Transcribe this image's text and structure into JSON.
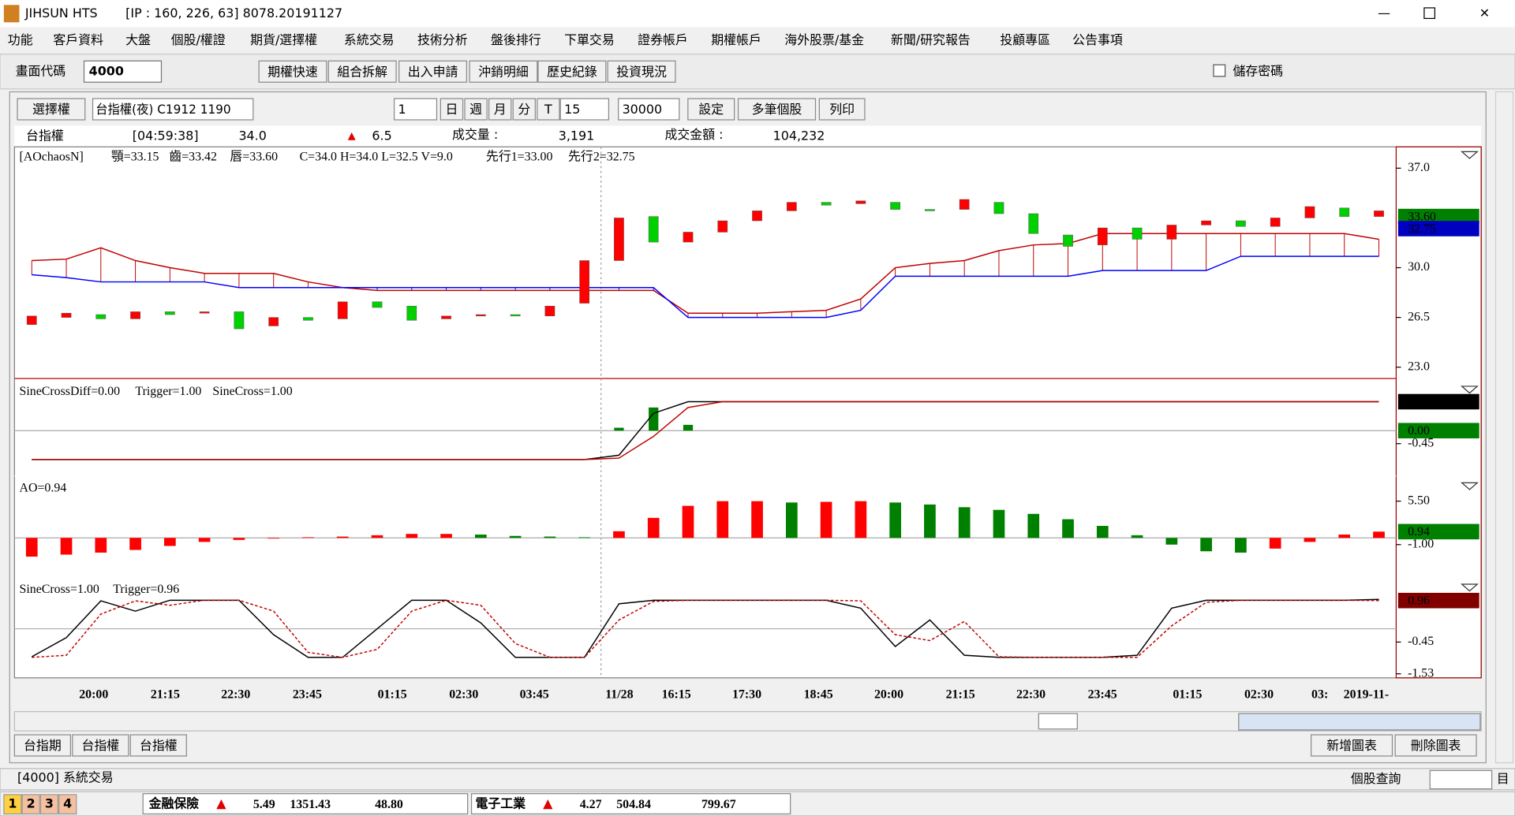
{
  "window": {
    "app": "JIHSUN HTS",
    "info": "[IP : 160, 226, 63] 8078.20191127"
  },
  "menu": [
    "功能",
    "客戶資料",
    "大盤",
    "個股/權證",
    "期貨/選擇權",
    "系統交易",
    "技術分析",
    "盤後排行",
    "下單交易",
    "證券帳戶",
    "期權帳戶",
    "海外股票/基金",
    "新聞/研究報告",
    "投顧專區",
    "公告事項"
  ],
  "toolbar": {
    "code_label": "畫面代碼",
    "code": "4000",
    "buttons": [
      "期權快速",
      "組合拆解",
      "出入申請",
      "沖銷明細",
      "歷史紀錄",
      "投資現況"
    ],
    "save_password": "儲存密碼"
  },
  "chart_toolbar": {
    "selector": "選擇權",
    "symbol": "台指權(夜) C1912 1190",
    "page": "1",
    "periods": [
      "日",
      "週",
      "月",
      "分",
      "T"
    ],
    "interval": "15",
    "count": "30000",
    "buttons": [
      "設定",
      "多筆個股",
      "列印"
    ]
  },
  "quote": {
    "name": "台指權",
    "time": "[04:59:38]",
    "price": "34.0",
    "change": "6.5",
    "volume_label": "成交量 :",
    "volume": "3,191",
    "amount_label": "成交金額 :",
    "amount": "104,232"
  },
  "panels": [
    {
      "type": "candlestick",
      "legend": [
        {
          "text": "[AOchaosN]",
          "color": "#000000"
        },
        {
          "text": "顎=33.15",
          "color": "#0000c0"
        },
        {
          "text": "齒=33.42",
          "color": "#c00000"
        },
        {
          "text": "唇=33.60",
          "color": "#008000"
        },
        {
          "text": "C=34.0 H=34.0 L=32.5 V=9.0",
          "color": "#008000"
        },
        {
          "text": "先行1=33.00",
          "color": "#c00000"
        },
        {
          "text": "先行2=32.75",
          "color": "#0000c0"
        }
      ],
      "ylim": [
        22.2,
        38.5
      ],
      "yticks": [
        {
          "value": 37,
          "label": "37.0"
        },
        {
          "value": 30,
          "label": "30.0"
        },
        26.5,
        {
          "value": 23,
          "label": "23.0"
        }
      ],
      "open": [
        26.0,
        26.5,
        26.7,
        26.4,
        26.9,
        26.8,
        26.9,
        25.9,
        26.5,
        26.4,
        27.6,
        27.3,
        26.4,
        26.6,
        26.7,
        26.6,
        27.5,
        30.5,
        33.6,
        31.8,
        32.5,
        33.3,
        34.0,
        34.6,
        34.5,
        34.6,
        34.1,
        34.1,
        34.6,
        33.8,
        32.3,
        31.6,
        32.8,
        32.0,
        33.0,
        33.3,
        32.9,
        33.5,
        34.2,
        33.6
      ],
      "close": [
        26.6,
        26.8,
        26.4,
        26.9,
        26.7,
        26.9,
        25.7,
        26.5,
        26.3,
        27.6,
        27.2,
        26.3,
        26.6,
        26.7,
        26.6,
        27.3,
        30.5,
        33.5,
        31.8,
        32.5,
        33.3,
        34.0,
        34.6,
        34.4,
        34.7,
        34.1,
        34.0,
        34.8,
        33.8,
        32.4,
        31.5,
        32.8,
        32.0,
        33.0,
        33.3,
        32.9,
        33.5,
        34.3,
        33.6,
        34.0
      ],
      "up_color": "#ff0000",
      "down_color": "#00d000",
      "span1": {
        "color": "#c00000",
        "values": [
          30.5,
          30.6,
          31.4,
          30.5,
          30.0,
          29.6,
          29.6,
          29.6,
          29.0,
          28.6,
          28.4,
          28.4,
          28.4,
          28.4,
          28.4,
          28.4,
          28.4,
          28.4,
          28.4,
          26.8,
          26.8,
          26.8,
          26.9,
          27.0,
          27.8,
          30.0,
          30.3,
          30.5,
          31.2,
          31.6,
          31.7,
          32.4,
          32.4,
          32.4,
          32.4,
          32.4,
          32.4,
          32.4,
          32.4,
          32.0
        ]
      },
      "span2": {
        "color": "#0000ff",
        "values": [
          29.5,
          29.3,
          29.0,
          29.0,
          29.0,
          29.0,
          28.6,
          28.6,
          28.6,
          28.6,
          28.6,
          28.6,
          28.6,
          28.6,
          28.6,
          28.6,
          28.6,
          28.6,
          28.6,
          26.5,
          26.5,
          26.5,
          26.5,
          26.5,
          27.0,
          29.4,
          29.4,
          29.4,
          29.4,
          29.4,
          29.4,
          29.8,
          29.8,
          29.8,
          29.8,
          30.8,
          30.8,
          30.8,
          30.8,
          30.8
        ]
      },
      "tags": [
        {
          "value": 33.6,
          "label": "33.60",
          "color": "#008000"
        },
        {
          "value": 32.75,
          "label": "32.75",
          "color": "#0000c0"
        }
      ]
    },
    {
      "type": "line",
      "legend": [
        {
          "text": "SineCrossDiff=0.00",
          "color": "#008000"
        },
        {
          "text": "Trigger=1.00",
          "color": "#c00000"
        },
        {
          "text": "SineCross=1.00",
          "color": "#000000"
        }
      ],
      "ylim": [
        -1.47,
        1.7
      ],
      "yticks": [
        {
          "value": -0.45,
          "label": "-0.45"
        }
      ],
      "series": [
        {
          "color": "#000000",
          "dash": false,
          "values": [
            -1,
            -1,
            -1,
            -1,
            -1,
            -1,
            -1,
            -1,
            -1,
            -1,
            -1,
            -1,
            -1,
            -1,
            -1,
            -1,
            -1,
            -0.85,
            0.6,
            1,
            1,
            1,
            1,
            1,
            1,
            1,
            1,
            1,
            1,
            1,
            1,
            1,
            1,
            1,
            1,
            1,
            1,
            1,
            1,
            1
          ]
        },
        {
          "color": "#c00000",
          "dash": false,
          "values": [
            -1,
            -1,
            -1,
            -1,
            -1,
            -1,
            -1,
            -1,
            -1,
            -1,
            -1,
            -1,
            -1,
            -1,
            -1,
            -1,
            -1,
            -0.95,
            -0.2,
            0.8,
            1,
            1,
            1,
            1,
            1,
            1,
            1,
            1,
            1,
            1,
            1,
            1,
            1,
            1,
            1,
            1,
            1,
            1,
            1,
            1
          ]
        }
      ],
      "bars": {
        "color": "#008000",
        "values": [
          0,
          0,
          0,
          0,
          0,
          0,
          0,
          0,
          0,
          0,
          0,
          0,
          0,
          0,
          0,
          0,
          0,
          0.1,
          0.8,
          0.2,
          0,
          0,
          0,
          0,
          0,
          0,
          0,
          0,
          0,
          0,
          0,
          0,
          0,
          0,
          0,
          0,
          0,
          0,
          0,
          0
        ]
      },
      "tags": [
        {
          "value": 1,
          "label": "1.00",
          "color": "#000000"
        },
        {
          "value": 0,
          "label": "0.00",
          "color": "#008000"
        }
      ]
    },
    {
      "type": "bar",
      "legend": [
        {
          "text": "AO=0.94",
          "color": "#008000"
        }
      ],
      "ylim": [
        -5.48,
        8.97
      ],
      "yticks": [
        {
          "value": 5.5,
          "label": "5.50"
        },
        {
          "value": -1,
          "label": "-1.00"
        }
      ],
      "values": [
        -2.8,
        -2.5,
        -2.2,
        -1.8,
        -1.2,
        -0.6,
        -0.3,
        -0.1,
        0.1,
        0.2,
        0.4,
        0.6,
        0.6,
        0.5,
        0.3,
        0.2,
        0.1,
        1.0,
        3.0,
        4.8,
        5.5,
        5.5,
        5.3,
        5.4,
        5.5,
        5.3,
        5.0,
        4.6,
        4.2,
        3.6,
        2.8,
        1.8,
        0.4,
        -1.0,
        -2.0,
        -2.2,
        -1.6,
        -0.6,
        0.5,
        0.94
      ],
      "up_color": "#ff0000",
      "down_color": "#008000",
      "tags": [
        {
          "value": 0.94,
          "label": "0.94",
          "color": "#008000"
        }
      ]
    },
    {
      "type": "line",
      "legend": [
        {
          "text": "SineCross=1.00",
          "color": "#000000"
        },
        {
          "text": "Trigger=0.96",
          "color": "#c00000"
        }
      ],
      "ylim": [
        -1.6,
        1.68
      ],
      "yticks": [
        {
          "value": -0.45,
          "label": "-0.45"
        },
        {
          "value": -1.53,
          "label": "-1.53"
        }
      ],
      "series": [
        {
          "color": "#000000",
          "dash": false,
          "values": [
            -0.95,
            -0.3,
            0.95,
            0.6,
            0.97,
            0.97,
            0.97,
            -0.2,
            -0.97,
            -0.97,
            0.0,
            0.97,
            0.97,
            0.2,
            -0.97,
            -0.97,
            -0.97,
            0.85,
            0.97,
            0.97,
            0.97,
            0.97,
            0.97,
            0.97,
            0.7,
            -0.6,
            0.3,
            -0.9,
            -0.97,
            -0.97,
            -0.97,
            -0.97,
            -0.9,
            0.7,
            0.97,
            0.97,
            0.97,
            0.97,
            0.97,
            1.0
          ]
        },
        {
          "color": "#c00000",
          "dash": true,
          "values": [
            -0.97,
            -0.9,
            0.5,
            0.95,
            0.8,
            0.97,
            0.97,
            0.6,
            -0.8,
            -0.97,
            -0.7,
            0.6,
            0.97,
            0.8,
            -0.5,
            -0.97,
            -0.97,
            0.3,
            0.93,
            0.97,
            0.97,
            0.97,
            0.97,
            0.97,
            0.95,
            -0.2,
            -0.4,
            0.25,
            -0.95,
            -0.97,
            -0.97,
            -0.97,
            -0.97,
            0.1,
            0.9,
            0.97,
            0.97,
            0.97,
            0.97,
            0.96
          ]
        }
      ],
      "tags": [
        {
          "value": 0.96,
          "label": "0.96",
          "color": "#800000"
        }
      ]
    }
  ],
  "x_labels": [
    "20:00",
    "21:15",
    "22:30",
    "23:45",
    "01:15",
    "02:30",
    "03:45",
    "11/28",
    "16:15",
    "17:30",
    "18:45",
    "20:00",
    "21:15",
    "22:30",
    "23:45",
    "01:15",
    "02:30",
    "03:",
    "2019-11-"
  ],
  "tabs": [
    "台指期",
    "台指權",
    "台指權"
  ],
  "chart_buttons": [
    "新增圖表",
    "刪除圖表"
  ],
  "status": {
    "tab": "[4000] 系統交易",
    "search": "個股查詢",
    "field": "目"
  },
  "page_tabs": [
    "1",
    "2",
    "3",
    "4"
  ],
  "ticker": [
    {
      "name": "金融保險",
      "change": "5.49",
      "index": "1351.43",
      "volume": "48.80"
    },
    {
      "name": "電子工業",
      "change": "4.27",
      "index": "504.84",
      "volume": "799.67"
    }
  ]
}
